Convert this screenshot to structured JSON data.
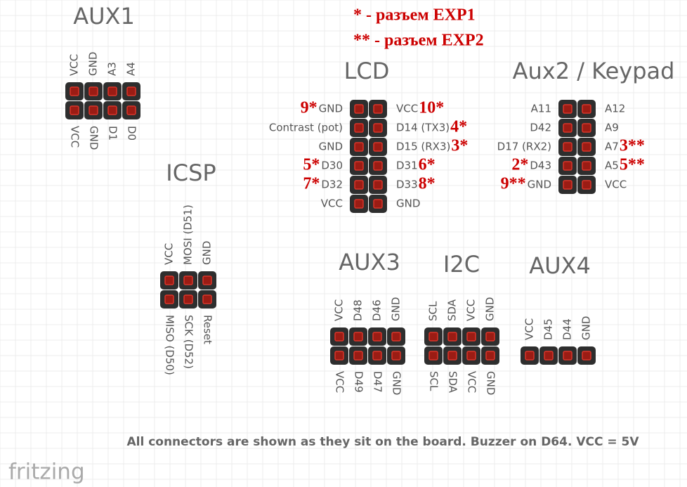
{
  "legend": [
    "* - разъем EXP1",
    "** - разъем EXP2"
  ],
  "connectors": [
    {
      "title": "AUX1",
      "top": [
        "VCC",
        "GND",
        "A3",
        "A4"
      ],
      "bottom": [
        "VCC",
        "GND",
        "D1",
        "D0"
      ]
    },
    {
      "title": "ICSP",
      "top": [
        "VCC",
        "MOSI (D51)",
        "GND"
      ],
      "bottom": [
        "MISO (D50)",
        "SCK (D52)",
        "Reset"
      ]
    },
    {
      "title": "LCD",
      "rows": [
        {
          "left": "GND",
          "left_mark": "9*",
          "right": "VCC",
          "right_mark": "10*"
        },
        {
          "left": "Contrast (pot)",
          "right": "D14 (TX3)",
          "right_mark": "4*"
        },
        {
          "left": "GND",
          "right": "D15 (RX3)",
          "right_mark": "3*"
        },
        {
          "left": "D30",
          "left_mark": "5*",
          "right": "D31",
          "right_mark": "6*"
        },
        {
          "left": "D32",
          "left_mark": "7*",
          "right": "D33",
          "right_mark": "8*"
        },
        {
          "left": "VCC",
          "right": "GND"
        }
      ]
    },
    {
      "title": "Aux2 / Keypad",
      "rows": [
        {
          "left": "A11",
          "right": "A12"
        },
        {
          "left": "D42",
          "right": "A9"
        },
        {
          "left": "D17 (RX2)",
          "right": "A7",
          "right_mark": "3**"
        },
        {
          "left": "D43",
          "left_mark": "2*",
          "right": "A5",
          "right_mark": "5**"
        },
        {
          "left": "GND",
          "left_mark": "9**",
          "right": "VCC"
        }
      ]
    },
    {
      "title": "AUX3",
      "top": [
        "VCC",
        "D48",
        "D46",
        "GND"
      ],
      "bottom": [
        "VCC",
        "D49",
        "D47",
        "GND"
      ]
    },
    {
      "title": "I2C",
      "top": [
        "SCL",
        "SDA",
        "VCC",
        "GND"
      ],
      "bottom": [
        "SCL",
        "SDA",
        "VCC",
        "GND"
      ]
    },
    {
      "title": "AUX4",
      "top": [
        "VCC",
        "D45",
        "D44",
        "GND"
      ]
    }
  ],
  "note": "All connectors are shown as they sit on the board. Buzzer on D64. VCC = 5V",
  "logo": "fritzing"
}
